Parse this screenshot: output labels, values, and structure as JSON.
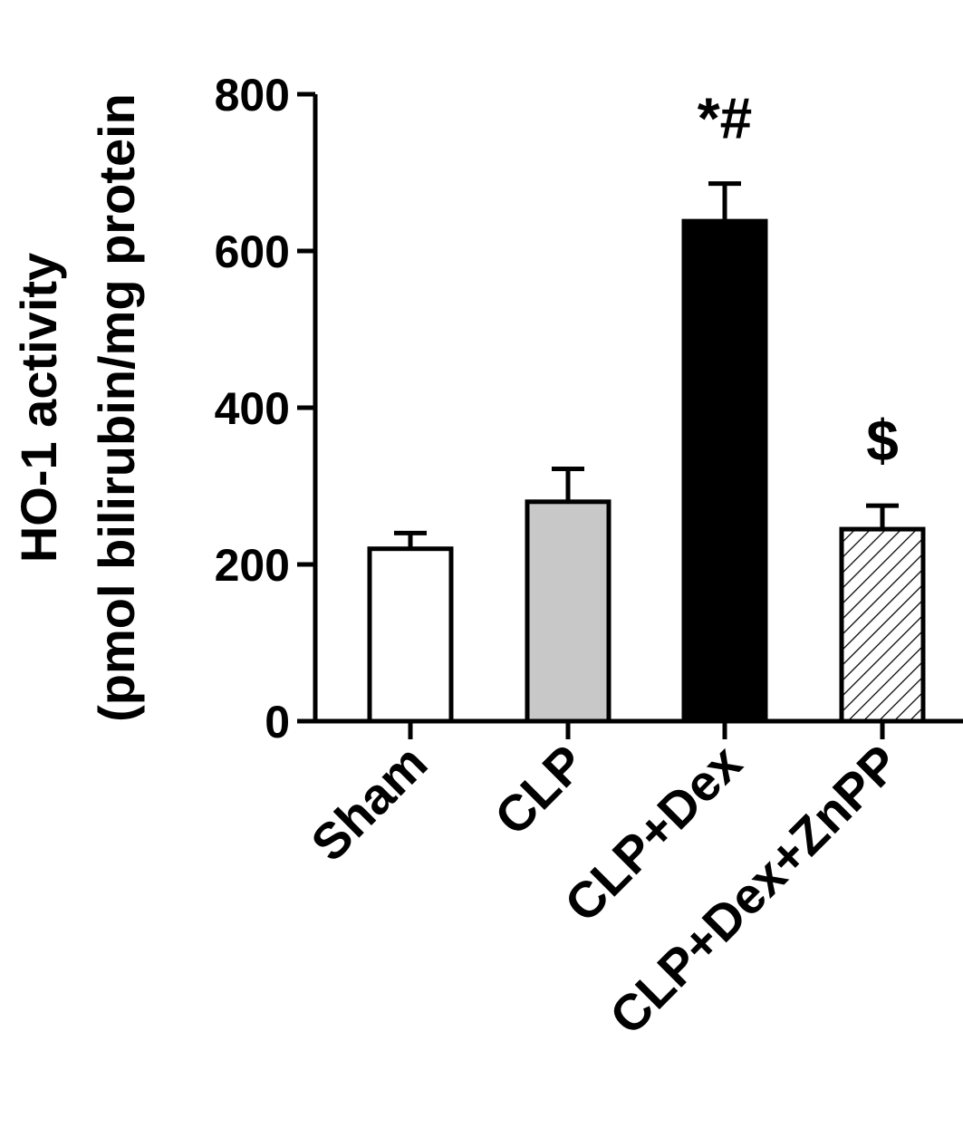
{
  "chart_data": {
    "type": "bar",
    "categories": [
      "Sham",
      "CLP",
      "CLP+Dex",
      "CLP+Dex+ZnPP"
    ],
    "values": [
      220,
      280,
      638,
      245
    ],
    "errors": [
      20,
      42,
      48,
      30
    ],
    "fills": [
      "#ffffff",
      "#c8c8c8",
      "#000000",
      "hatch"
    ],
    "annotations": [
      "",
      "",
      "*#",
      "$"
    ],
    "ylabel_line1": "HO-1 activity",
    "ylabel_line2": "(pmol bilirubin/mg protein",
    "ylim": [
      0,
      800
    ],
    "yticks": [
      0,
      200,
      400,
      600,
      800
    ],
    "ytick_labels": [
      "0",
      "200",
      "400",
      "600",
      "800"
    ],
    "grid": false
  }
}
